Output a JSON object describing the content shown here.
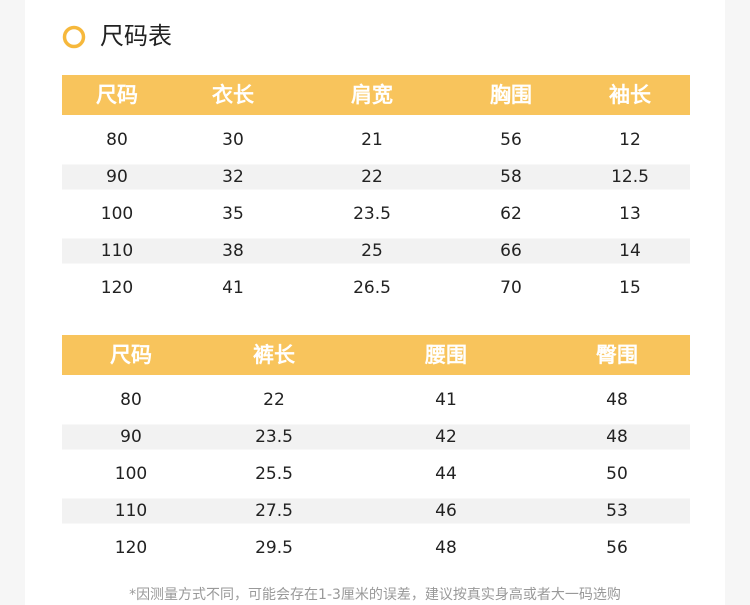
{
  "header": {
    "title": "尺码表"
  },
  "tables": [
    {
      "columns": [
        "尺码",
        "衣长",
        "肩宽",
        "胸围",
        "袖长"
      ],
      "rows": [
        [
          80,
          30,
          21,
          56,
          12
        ],
        [
          90,
          32,
          22,
          58,
          12.5
        ],
        [
          100,
          35,
          23.5,
          62,
          13
        ],
        [
          110,
          38,
          25,
          66,
          14
        ],
        [
          120,
          41,
          26.5,
          70,
          15
        ]
      ]
    },
    {
      "columns": [
        "尺码",
        "裤长",
        "腰围",
        "臀围"
      ],
      "rows": [
        [
          80,
          22,
          41,
          48
        ],
        [
          90,
          23.5,
          42,
          48
        ],
        [
          100,
          25.5,
          44,
          50
        ],
        [
          110,
          27.5,
          46,
          53
        ],
        [
          120,
          29.5,
          48,
          56
        ]
      ]
    }
  ],
  "footnote": "*因测量方式不同，可能会存在1-3厘米的误差，建议按真实身高或者大一码选购"
}
